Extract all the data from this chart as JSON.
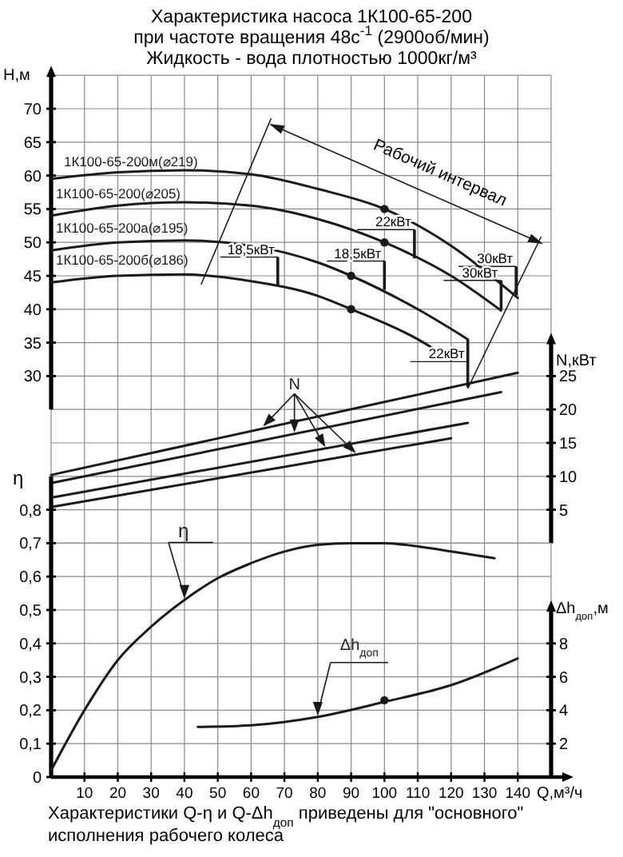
{
  "chart_data": [
    {
      "type": "line",
      "title": "Характеристика насоса 1К100-65-200",
      "subtitle": "при частоте вращения 48с$^{-1}$ (2900об/мин)\nЖидкость - вода плотностью 1000кг/м³",
      "ylabel": "H,м",
      "y2label": "N,кВт",
      "xlim": [
        0,
        150
      ],
      "xticks": [
        10,
        20,
        30,
        40,
        50,
        60,
        70,
        80,
        90,
        100,
        110,
        120,
        130,
        140
      ],
      "ylim": [
        5,
        75
      ],
      "yticks": [
        30,
        35,
        40,
        45,
        50,
        55,
        60,
        65,
        70
      ],
      "y2lim": [
        0,
        30
      ],
      "y2ticks": [
        5,
        10,
        15,
        20,
        25
      ],
      "grid": true,
      "tick_labels": "y",
      "series": [
        {
          "name": "1К100-65-200м(⌀219)",
          "color": "#1a1a1a",
          "x": [
            0,
            20,
            40,
            60,
            80,
            100,
            120,
            140
          ],
          "values": [
            59.5,
            60.5,
            60.8,
            60.2,
            58,
            55,
            49.5,
            41.7
          ]
        },
        {
          "name": "1К100-65-200(⌀205)",
          "color": "#1a1a1a",
          "x": [
            0,
            20,
            40,
            60,
            80,
            100,
            120,
            135
          ],
          "values": [
            54,
            55.5,
            56,
            55.5,
            53.5,
            50,
            45,
            39.8
          ]
        },
        {
          "name": "1К100-65-200а(⌀195)",
          "color": "#1a1a1a",
          "x": [
            0,
            20,
            40,
            60,
            80,
            90,
            110,
            125
          ],
          "values": [
            48.8,
            50,
            50.3,
            49.5,
            47,
            45,
            40,
            35.5
          ]
        },
        {
          "name": "1К100-65-200б(⌀186)",
          "color": "#1a1a1a",
          "x": [
            0,
            20,
            40,
            60,
            80,
            90,
            110,
            120
          ],
          "values": [
            44,
            45,
            45.2,
            44.2,
            42,
            40,
            35.5,
            32.4
          ]
        },
        {
          "type": "scatter",
          "marker": "circle",
          "color": "#1a1a1a",
          "x": [
            100,
            100,
            90,
            90
          ],
          "values": [
            55,
            50,
            45,
            40
          ]
        },
        {
          "name": "N",
          "color": "#1a1a1a",
          "axis": "y2",
          "x": [
            0,
            140
          ],
          "values": [
            10.2,
            25.5
          ]
        },
        {
          "color": "#1a1a1a",
          "axis": "y2",
          "x": [
            0,
            135
          ],
          "values": [
            9,
            22.6
          ]
        },
        {
          "color": "#1a1a1a",
          "axis": "y2",
          "x": [
            0,
            125
          ],
          "values": [
            6.8,
            18
          ]
        },
        {
          "color": "#1a1a1a",
          "axis": "y2",
          "x": [
            0,
            120
          ],
          "values": [
            5.4,
            15.7
          ]
        }
      ],
      "annotations": [
        "Рабочий интервал",
        {
          "text": "22кВт",
          "x": 109,
          "y": 47.6
        },
        {
          "text": "18,5кВт",
          "x": 100,
          "y": 42.9
        },
        {
          "text": "30кВт",
          "x": 139.5,
          "y": 42.1
        },
        {
          "text": "30кВт",
          "x": 135,
          "y": 40
        },
        {
          "text": "18,5кВт",
          "x": 68,
          "y": 43.5
        },
        {
          "text": "22кВт",
          "x": 125,
          "y": 35.5
        }
      ]
    },
    {
      "type": "line",
      "xlabel": "Q,м³/ч",
      "ylabel": "η",
      "y2label": "Δh$_{доп}$,м",
      "xlim": [
        0,
        150
      ],
      "xticks": [
        10,
        20,
        30,
        40,
        50,
        60,
        70,
        80,
        90,
        100,
        110,
        120,
        130,
        140
      ],
      "ylim": [
        0,
        0.9
      ],
      "yticks": [
        0,
        {
          "value": 0.1,
          "label": "0,1"
        },
        {
          "value": 0.2,
          "label": "0,2"
        },
        {
          "value": 0.3,
          "label": "0,3"
        },
        {
          "value": 0.4,
          "label": "0,4"
        },
        {
          "value": 0.5,
          "label": "0,5"
        },
        {
          "value": 0.6,
          "label": "0,6"
        },
        {
          "value": 0.7,
          "label": "0,7"
        },
        {
          "value": 0.8,
          "label": "0,8"
        }
      ],
      "y2lim": [
        0,
        10
      ],
      "y2ticks": [
        2,
        4,
        6,
        8
      ],
      "grid": true,
      "series": [
        {
          "name": "η",
          "color": "#1a1a1a",
          "x": [
            0,
            10,
            20,
            30,
            40,
            50,
            60,
            70,
            80,
            90,
            100,
            110,
            120,
            133
          ],
          "values": [
            0.02,
            0.2,
            0.35,
            0.45,
            0.53,
            0.595,
            0.64,
            0.675,
            0.695,
            0.7,
            0.7,
            0.69,
            0.675,
            0.655
          ]
        },
        {
          "name": "Δh$_{доп}$",
          "color": "#1a1a1a",
          "axis": "y2",
          "x": [
            44,
            60,
            80,
            100,
            120,
            140
          ],
          "values": [
            3,
            3.1,
            3.6,
            4.5,
            5.5,
            7.1
          ]
        },
        {
          "type": "scatter",
          "marker": "circle",
          "color": "#1a1a1a",
          "axis": "y2",
          "x": [
            100
          ],
          "values": [
            4.6
          ]
        }
      ],
      "annotations": [
        "Характеристики Q-η и Q-Δh$_{доп}$ приведены для \"основного\"\nисполнения рабочего колеса"
      ]
    }
  ]
}
